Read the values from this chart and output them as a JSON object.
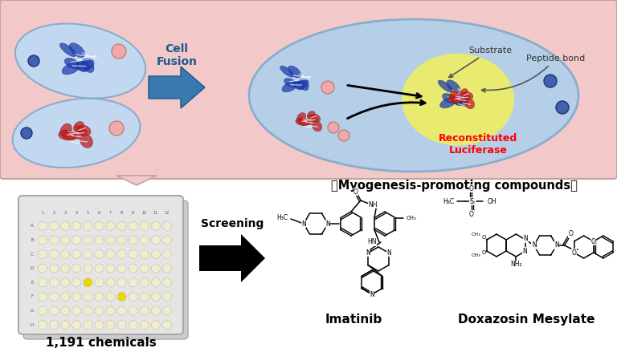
{
  "bg_top_color": "#f2c8c8",
  "cell_blue_fill": "#c2d8f0",
  "cell_blue_edge": "#8aadcc",
  "fused_cell_fill": "#b5cfe8",
  "yellow_glow": "#f0f060",
  "pink_sphere": "#f0a8a8",
  "blue_dot": "#4060b0",
  "protein_blue": "#2040b0",
  "protein_red": "#c02020",
  "well_default": "#f0eccc",
  "well_hit": "#e8d800",
  "title_myogenesis": "【Myogenesis-promoting compounds】",
  "label_cell_fusion": "Cell\nFusion",
  "label_screening": "Screening",
  "label_substrate": "Substrate",
  "label_peptide": "Peptide bond",
  "label_reconstituted": "Reconstituted\nLuciferase",
  "label_chemicals": "1,191 chemicals",
  "label_imatinib": "Imatinib",
  "label_doxazosin": "Doxazosin Mesylate"
}
